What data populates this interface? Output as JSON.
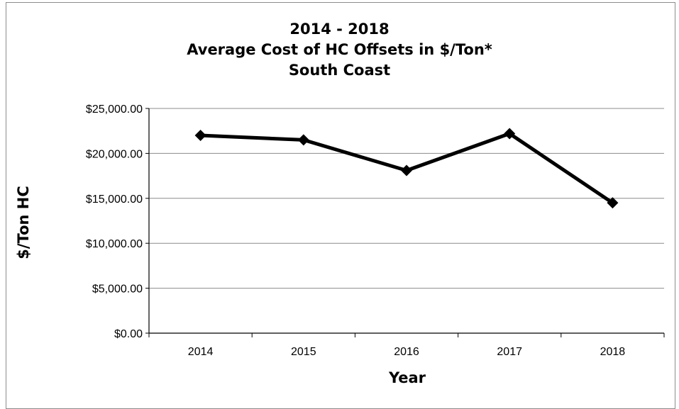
{
  "chart_data": {
    "type": "line",
    "title_lines": [
      "2014 - 2018",
      "Average Cost of HC Offsets in $/Ton*",
      "South Coast"
    ],
    "xlabel": "Year",
    "ylabel": "$/Ton HC",
    "categories": [
      "2014",
      "2015",
      "2016",
      "2017",
      "2018"
    ],
    "series": [
      {
        "values": [
          22000,
          21500,
          18100,
          22200,
          14500
        ]
      }
    ],
    "ylim": [
      0,
      25000
    ],
    "yticks": [
      0,
      5000,
      10000,
      15000,
      20000,
      25000
    ],
    "ytick_labels": [
      "$0.00",
      "$5,000.00",
      "$10,000.00",
      "$15,000.00",
      "$20,000.00",
      "$25,000.00"
    ],
    "grid": true,
    "legend": "none",
    "colors": {
      "line": "#000000",
      "gridline": "#8c8c8c",
      "axis": "#000000"
    }
  }
}
